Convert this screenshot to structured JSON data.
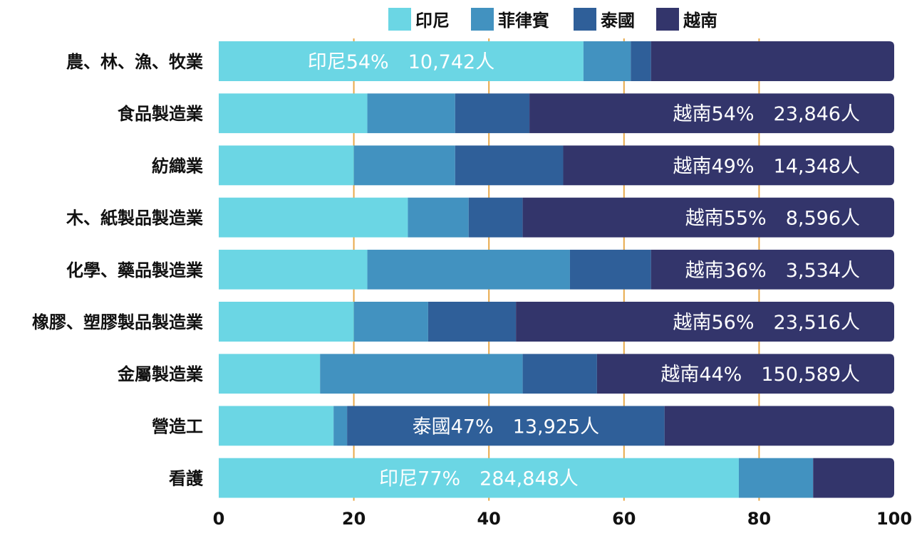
{
  "chart_data": {
    "type": "bar",
    "orientation": "horizontal",
    "stacked": true,
    "title": "",
    "xlabel": "",
    "ylabel": "",
    "xlim": [
      0,
      100
    ],
    "xticks": [
      0,
      20,
      40,
      60,
      80,
      100
    ],
    "grid": "vertical",
    "legend_position": "top",
    "categories": [
      "農、林、漁、牧業",
      "食品製造業",
      "紡織業",
      "木、紙製品製造業",
      "化學、藥品製造業",
      "橡膠、塑膠製品製造業",
      "金屬製造業",
      "營造工",
      "看護"
    ],
    "series": [
      {
        "name": "印尼",
        "color": "#6bd6e4",
        "values": [
          54,
          22,
          20,
          28,
          22,
          20,
          15,
          17,
          77
        ]
      },
      {
        "name": "菲律賓",
        "color": "#4292c0",
        "values": [
          7,
          13,
          15,
          9,
          30,
          11,
          30,
          2,
          11
        ]
      },
      {
        "name": "泰國",
        "color": "#2f5f99",
        "values": [
          3,
          11,
          16,
          8,
          12,
          13,
          11,
          47,
          0
        ]
      },
      {
        "name": "越南",
        "color": "#33356b",
        "values": [
          36,
          54,
          49,
          55,
          36,
          56,
          44,
          34,
          12
        ]
      }
    ],
    "annotations": [
      {
        "category_index": 0,
        "series_index": 0,
        "text": "印尼54%　10,742人"
      },
      {
        "category_index": 1,
        "series_index": 3,
        "text": "越南54%　23,846人"
      },
      {
        "category_index": 2,
        "series_index": 3,
        "text": "越南49%　14,348人"
      },
      {
        "category_index": 3,
        "series_index": 3,
        "text": "越南55%　8,596人"
      },
      {
        "category_index": 4,
        "series_index": 3,
        "text": "越南36%　3,534人"
      },
      {
        "category_index": 5,
        "series_index": 3,
        "text": "越南56%　23,516人"
      },
      {
        "category_index": 6,
        "series_index": 3,
        "text": "越南44%　150,589人"
      },
      {
        "category_index": 7,
        "series_index": 2,
        "text": "泰國47%　13,925人"
      },
      {
        "category_index": 8,
        "series_index": 0,
        "text": "印尼77%　284,848人"
      }
    ],
    "colors": {
      "grid": "#e8a94a",
      "text": "#111111",
      "label": "#ffffff"
    }
  }
}
